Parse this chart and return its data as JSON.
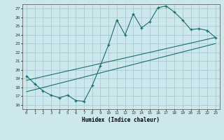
{
  "xlabel": "Humidex (Indice chaleur)",
  "bg_color": "#cce8ed",
  "grid_color": "#aac8d0",
  "line_color": "#1a6e6a",
  "xlim": [
    -0.5,
    23.5
  ],
  "ylim": [
    15.5,
    27.5
  ],
  "xticks": [
    0,
    1,
    2,
    3,
    4,
    5,
    6,
    7,
    8,
    9,
    10,
    11,
    12,
    13,
    14,
    15,
    16,
    17,
    18,
    19,
    20,
    21,
    22,
    23
  ],
  "yticks": [
    16,
    17,
    18,
    19,
    20,
    21,
    22,
    23,
    24,
    25,
    26,
    27
  ],
  "main_x": [
    0,
    1,
    2,
    3,
    4,
    5,
    6,
    7,
    8,
    9,
    10,
    11,
    12,
    13,
    14,
    15,
    16,
    17,
    18,
    19,
    20,
    21,
    22,
    23
  ],
  "main_y": [
    19.3,
    18.4,
    17.6,
    17.1,
    16.8,
    17.1,
    16.5,
    16.4,
    18.2,
    20.5,
    22.9,
    25.7,
    24.0,
    26.4,
    24.8,
    25.5,
    27.1,
    27.3,
    26.6,
    25.7,
    24.6,
    24.7,
    24.5,
    23.7
  ],
  "line1_x": [
    0,
    23
  ],
  "line1_y": [
    18.8,
    23.7
  ],
  "line2_x": [
    0,
    23
  ],
  "line2_y": [
    17.5,
    23.0
  ]
}
